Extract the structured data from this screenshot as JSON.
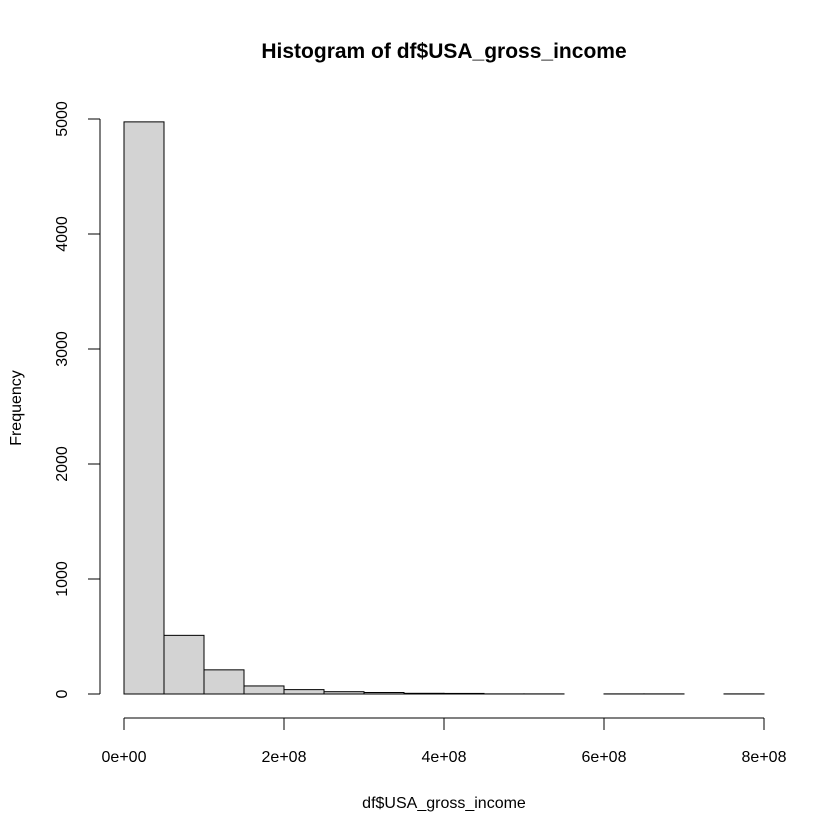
{
  "chart_data": {
    "type": "histogram",
    "title": "Histogram of df$USA_gross_income",
    "xlabel": "df$USA_gross_income",
    "ylabel": "Frequency",
    "bin_width": 50000000,
    "bins": [
      {
        "start": 0,
        "end": 50000000,
        "count": 4975
      },
      {
        "start": 50000000,
        "end": 100000000,
        "count": 510
      },
      {
        "start": 100000000,
        "end": 150000000,
        "count": 210
      },
      {
        "start": 150000000,
        "end": 200000000,
        "count": 70
      },
      {
        "start": 200000000,
        "end": 250000000,
        "count": 38
      },
      {
        "start": 250000000,
        "end": 300000000,
        "count": 20
      },
      {
        "start": 300000000,
        "end": 350000000,
        "count": 13
      },
      {
        "start": 350000000,
        "end": 400000000,
        "count": 6
      },
      {
        "start": 400000000,
        "end": 450000000,
        "count": 5
      },
      {
        "start": 450000000,
        "end": 500000000,
        "count": 1
      },
      {
        "start": 500000000,
        "end": 550000000,
        "count": 1
      },
      {
        "start": 550000000,
        "end": 600000000,
        "count": 0
      },
      {
        "start": 600000000,
        "end": 650000000,
        "count": 1
      },
      {
        "start": 650000000,
        "end": 700000000,
        "count": 1
      },
      {
        "start": 700000000,
        "end": 750000000,
        "count": 0
      },
      {
        "start": 750000000,
        "end": 800000000,
        "count": 1
      }
    ],
    "xlim": [
      0,
      800000000
    ],
    "ylim": [
      0,
      5000
    ],
    "x_ticks": [
      {
        "value": 0,
        "label": "0e+00"
      },
      {
        "value": 200000000,
        "label": "2e+08"
      },
      {
        "value": 400000000,
        "label": "4e+08"
      },
      {
        "value": 600000000,
        "label": "6e+08"
      },
      {
        "value": 800000000,
        "label": "8e+08"
      }
    ],
    "y_ticks": [
      {
        "value": 0,
        "label": "0"
      },
      {
        "value": 1000,
        "label": "1000"
      },
      {
        "value": 2000,
        "label": "2000"
      },
      {
        "value": 3000,
        "label": "3000"
      },
      {
        "value": 4000,
        "label": "4000"
      },
      {
        "value": 5000,
        "label": "5000"
      }
    ],
    "grid": false,
    "bar_fill": "#d3d3d3",
    "bar_stroke": "#000000"
  }
}
